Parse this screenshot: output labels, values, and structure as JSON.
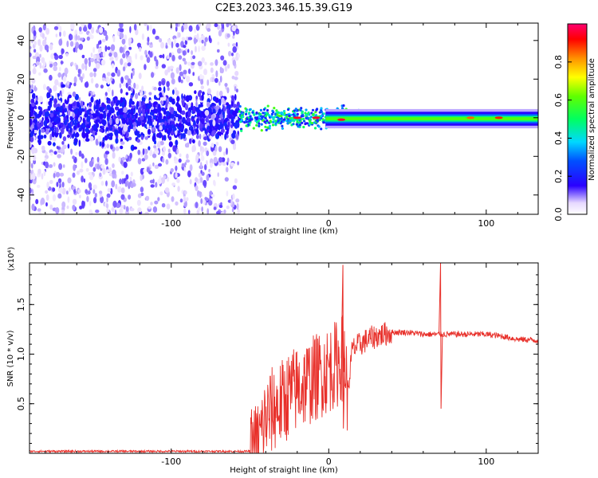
{
  "title": "C2E3.2023.346.15.39.G19",
  "colors": {
    "snr_line": "#e8302a",
    "spectral_blob": "#5a00e6",
    "spectral_blob_light": "#b58cf2",
    "frame": "#000000"
  },
  "chart_data": [
    {
      "type": "heatmap",
      "description_source": "upper panel",
      "xlabel": "Height of straight line (km)",
      "ylabel": "Frequency (Hz)",
      "xlim": [
        -190,
        133
      ],
      "ylim": [
        -50,
        49
      ],
      "x_ticks": [
        -100,
        0,
        100
      ],
      "x_tick_labels": [
        "-100",
        "0",
        "100"
      ],
      "y_ticks": [
        -40,
        -20,
        0,
        20,
        40
      ],
      "y_tick_labels": [
        "-40",
        "-20",
        "0",
        "20",
        "40"
      ],
      "colorbar": {
        "label": "Normalized spectral amplitude",
        "range": [
          0,
          1
        ],
        "ticks": [
          0.0,
          0.2,
          0.4,
          0.6,
          0.8
        ],
        "tick_labels": [
          "0.0",
          "0.2",
          "0.4",
          "0.6",
          "0.8"
        ]
      },
      "regions": [
        {
          "x_range": [
            -190,
            -57
          ],
          "kind": "scattered noise",
          "core_band_hz": [
            -10,
            10
          ],
          "spread_hz": [
            -50,
            49
          ],
          "amplitude": 0.15
        },
        {
          "x_range": [
            -57,
            20
          ],
          "kind": "transition",
          "band_hz": [
            -6,
            6
          ],
          "amplitude": 0.5
        },
        {
          "x_range": [
            20,
            133
          ],
          "kind": "stable carrier",
          "band_hz": [
            -5,
            4
          ],
          "amplitude": 0.6
        }
      ],
      "peaks": [
        {
          "x": -20,
          "y": 0,
          "amplitude": 0.95
        },
        {
          "x": -8,
          "y": 0,
          "amplitude": 0.95
        },
        {
          "x": 8,
          "y": -1,
          "amplitude": 0.95
        },
        {
          "x": 90,
          "y": 0,
          "amplitude": 0.85
        },
        {
          "x": 108,
          "y": 0,
          "amplitude": 0.9
        }
      ]
    },
    {
      "type": "line",
      "description_source": "lower panel",
      "xlabel": "Height of straight line (km)",
      "ylabel": "SNR (10 * v/v)",
      "y_scale_label": "(x10⁴)",
      "xlim": [
        -190,
        133
      ],
      "ylim": [
        0,
        1.92
      ],
      "x_ticks": [
        -100,
        0,
        100
      ],
      "x_tick_labels": [
        "-100",
        "0",
        "100"
      ],
      "y_ticks": [
        0.5,
        1.0,
        1.5
      ],
      "y_tick_labels": [
        "0.5",
        "1.0",
        "1.5"
      ],
      "series": [
        {
          "color": "#e8302a",
          "x": [
            -190,
            -100,
            -50,
            -45,
            -40,
            -35,
            -30,
            -25,
            -20,
            -15,
            -10,
            -5,
            0,
            5,
            10,
            12,
            15,
            20,
            25,
            30,
            40,
            50,
            60,
            68,
            72,
            75,
            80,
            90,
            100,
            110,
            120,
            133
          ],
          "y": [
            0.02,
            0.02,
            0.02,
            0.1,
            0.35,
            0.45,
            0.5,
            0.6,
            0.65,
            0.7,
            0.75,
            0.8,
            0.85,
            0.9,
            1.0,
            0.6,
            1.05,
            1.1,
            1.15,
            1.18,
            1.22,
            1.22,
            1.2,
            1.2,
            1.2,
            1.2,
            1.2,
            1.2,
            1.2,
            1.18,
            1.15,
            1.14
          ]
        }
      ],
      "spikes": [
        {
          "x": 9,
          "y": 1.9
        },
        {
          "x": 9,
          "y": 0.25
        },
        {
          "x": 71,
          "y": 1.92
        },
        {
          "x": 71,
          "y": 0.45
        }
      ]
    }
  ]
}
